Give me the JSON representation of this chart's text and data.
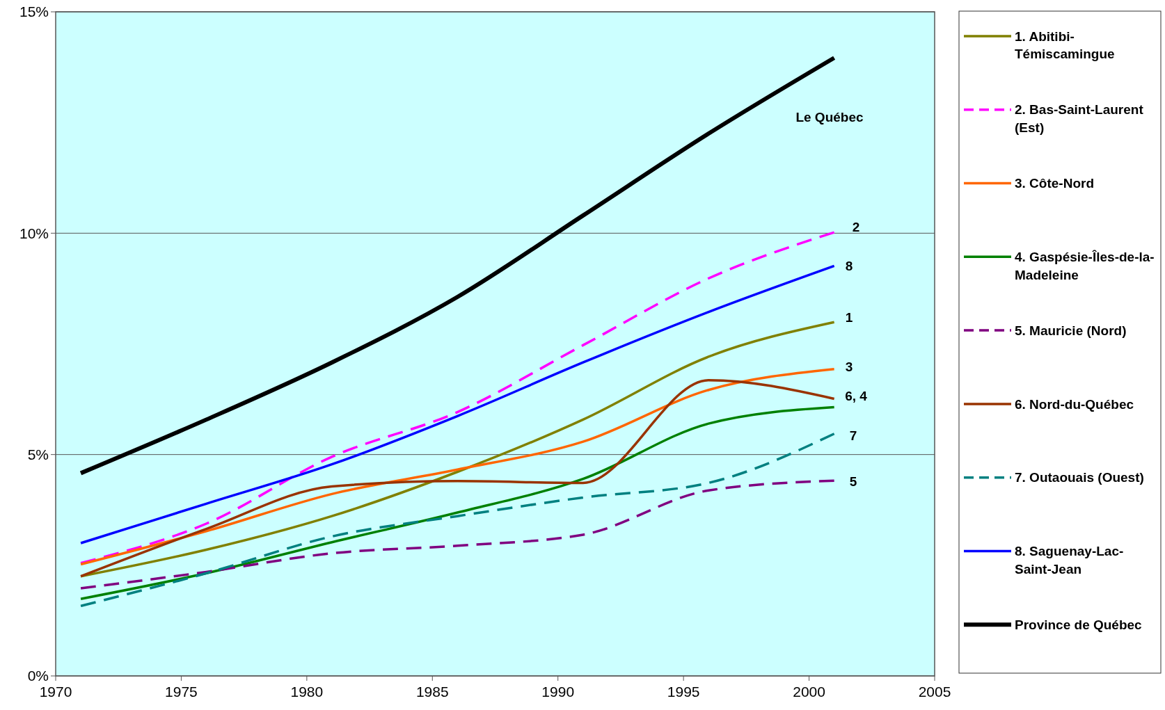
{
  "chart_data": {
    "type": "line",
    "x": [
      1971,
      1976,
      1981,
      1986,
      1991,
      1996,
      2001
    ],
    "xlim": [
      1970,
      2005
    ],
    "xticks": [
      1970,
      1975,
      1980,
      1985,
      1990,
      1995,
      2000,
      2005
    ],
    "ylim": [
      0,
      15
    ],
    "yticks": [
      {
        "value": 0,
        "label": "0%"
      },
      {
        "value": 5,
        "label": "5%"
      },
      {
        "value": 10,
        "label": "10%"
      },
      {
        "value": 15,
        "label": "15%"
      }
    ],
    "grid": "y",
    "legend": "right",
    "line_style": "solid",
    "marker": "none",
    "series": [
      {
        "name": "1. Abitibi-Témiscamingue",
        "color": "#808000",
        "values": [
          2.25,
          2.85,
          3.61,
          4.61,
          5.79,
          7.21,
          7.99
        ]
      },
      {
        "name": "2. Bas-Saint-Laurent (Est)",
        "color": "#ff00ff",
        "line_style": "dashed",
        "values": [
          2.55,
          3.44,
          4.95,
          5.96,
          7.47,
          8.98,
          10.02
        ]
      },
      {
        "name": "3. Côte-Nord",
        "color": "#ff6600",
        "values": [
          2.52,
          3.27,
          4.11,
          4.66,
          5.29,
          6.46,
          6.93
        ]
      },
      {
        "name": "4. Gaspésie-Îles-de-la-Madeleine",
        "color": "#008000",
        "values": [
          1.74,
          2.32,
          3.02,
          3.69,
          4.45,
          5.7,
          6.07
        ]
      },
      {
        "name": "5. Mauricie (Nord)",
        "color": "#800080",
        "line_style": "dashed",
        "values": [
          1.98,
          2.35,
          2.77,
          2.94,
          3.19,
          4.19,
          4.41
        ]
      },
      {
        "name": "6. Nord-du-Québec",
        "color": "#993300",
        "values": [
          2.25,
          3.32,
          4.28,
          4.4,
          4.36,
          6.68,
          6.26
        ]
      },
      {
        "name": "7. Outaouais (Ouest)",
        "color": "#008080",
        "line_style": "dashed",
        "values": [
          1.58,
          2.32,
          3.15,
          3.61,
          4.03,
          4.36,
          5.47
        ]
      },
      {
        "name": "8. Saguenay-Lac-Saint-Jean",
        "color": "#0000ff",
        "values": [
          3.0,
          3.89,
          4.78,
          5.87,
          7.08,
          8.22,
          9.26
        ]
      },
      {
        "name": "Province de Québec",
        "color": "#000000",
        "values": [
          4.58,
          5.79,
          7.08,
          8.56,
          10.4,
          12.25,
          13.96
        ]
      }
    ],
    "annotations": [
      "Le Québec",
      "2",
      "8",
      "1",
      "3",
      "6, 4",
      "7",
      "5"
    ]
  }
}
